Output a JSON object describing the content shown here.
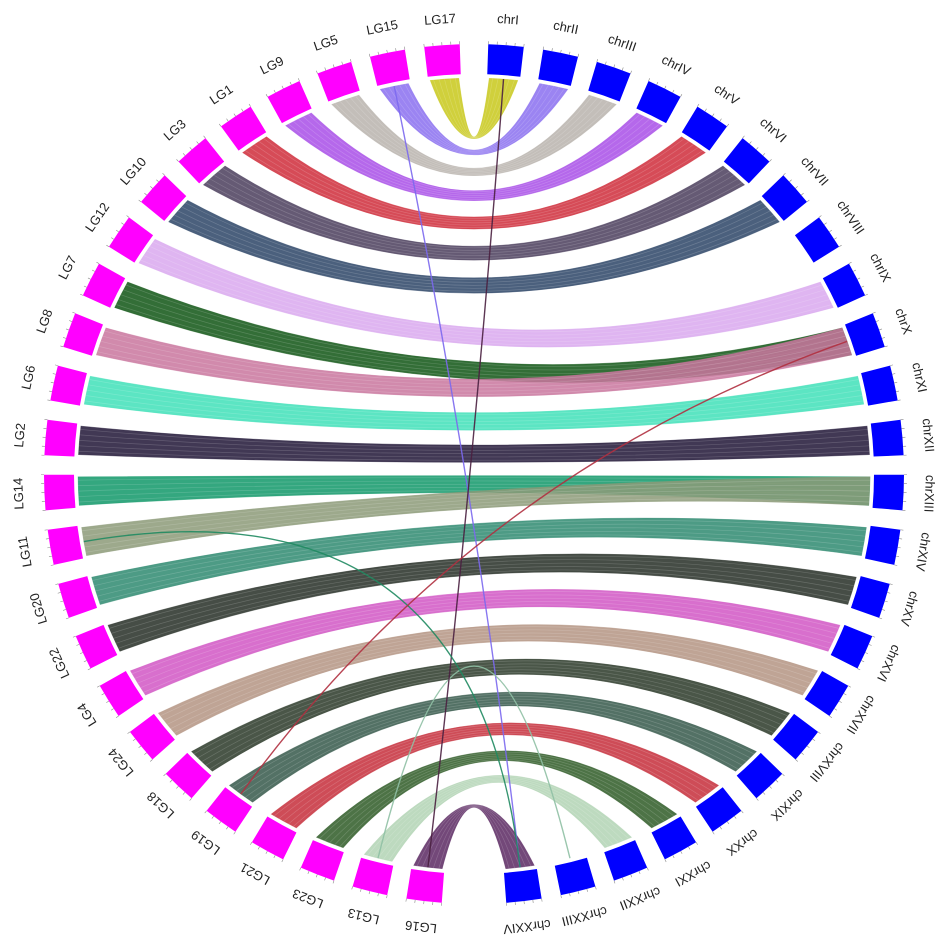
{
  "diagram": {
    "type": "circos-synteny",
    "colors": {
      "left_block": "#ff00ff",
      "right_block": "#0000ff",
      "label_text": "#222222",
      "background": "#ffffff"
    },
    "left_group": [
      {
        "label": "LG17"
      },
      {
        "label": "LG15"
      },
      {
        "label": "LG5"
      },
      {
        "label": "LG9"
      },
      {
        "label": "LG1"
      },
      {
        "label": "LG3"
      },
      {
        "label": "LG10"
      },
      {
        "label": "LG12"
      },
      {
        "label": "LG7"
      },
      {
        "label": "LG8"
      },
      {
        "label": "LG6"
      },
      {
        "label": "LG2"
      },
      {
        "label": "LG14"
      },
      {
        "label": "LG11"
      },
      {
        "label": "LG20"
      },
      {
        "label": "LG22"
      },
      {
        "label": "LG4"
      },
      {
        "label": "LG24"
      },
      {
        "label": "LG18"
      },
      {
        "label": "LG19"
      },
      {
        "label": "LG21"
      },
      {
        "label": "LG23"
      },
      {
        "label": "LG13"
      },
      {
        "label": "LG16"
      }
    ],
    "right_group": [
      {
        "label": "chrI"
      },
      {
        "label": "chrII"
      },
      {
        "label": "chrIII"
      },
      {
        "label": "chrIV"
      },
      {
        "label": "chrV"
      },
      {
        "label": "chrVI"
      },
      {
        "label": "chrVII"
      },
      {
        "label": "chrVIII"
      },
      {
        "label": "chrIX"
      },
      {
        "label": "chrX"
      },
      {
        "label": "chrXI"
      },
      {
        "label": "chrXII"
      },
      {
        "label": "chrXIII"
      },
      {
        "label": "chrXIV"
      },
      {
        "label": "chrXV"
      },
      {
        "label": "chrXVI"
      },
      {
        "label": "chrXVII"
      },
      {
        "label": "chrXVIII"
      },
      {
        "label": "chrXIX"
      },
      {
        "label": "chrXX"
      },
      {
        "label": "chrXXI"
      },
      {
        "label": "chrXXII"
      },
      {
        "label": "chrXXIII"
      },
      {
        "label": "chrXXIV"
      }
    ],
    "links": [
      {
        "from": "LG17",
        "to": "chrI",
        "color": "#c8c81a"
      },
      {
        "from": "LG15",
        "to": "chrII",
        "color": "#8a6ff0"
      },
      {
        "from": "LG5",
        "to": "chrIII",
        "color": "#b9b3ad"
      },
      {
        "from": "LG9",
        "to": "chrIV",
        "color": "#a84ee8"
      },
      {
        "from": "LG1",
        "to": "chrV",
        "color": "#cf2b3a"
      },
      {
        "from": "LG3",
        "to": "chrVI",
        "color": "#4a3d5c"
      },
      {
        "from": "LG10",
        "to": "chrVII",
        "color": "#2c4466"
      },
      {
        "from": "LG12",
        "to": "chrIX",
        "color": "#d9a8ef"
      },
      {
        "from": "LG7",
        "to": "chrX",
        "color": "#0f5514"
      },
      {
        "from": "LG8",
        "to": "chrX",
        "color": "#c9759e"
      },
      {
        "from": "LG6",
        "to": "chrXI",
        "color": "#3fe0b8"
      },
      {
        "from": "LG2",
        "to": "chrXII",
        "color": "#201536"
      },
      {
        "from": "LG14",
        "to": "chrXIII",
        "color": "#109868"
      },
      {
        "from": "LG11",
        "to": "chrXIII",
        "color": "#8c9a78"
      },
      {
        "from": "LG20",
        "to": "chrXIV",
        "color": "#2e8a70"
      },
      {
        "from": "LG22",
        "to": "chrXV",
        "color": "#262e26"
      },
      {
        "from": "LG4",
        "to": "chrXVI",
        "color": "#d156c4"
      },
      {
        "from": "LG24",
        "to": "chrXVII",
        "color": "#b49482"
      },
      {
        "from": "LG18",
        "to": "chrXVIII",
        "color": "#2a3828"
      },
      {
        "from": "LG19",
        "to": "chrXIX",
        "color": "#35584a"
      },
      {
        "from": "LG21",
        "to": "chrXX",
        "color": "#c62d3a"
      },
      {
        "from": "LG23",
        "to": "chrXXI",
        "color": "#2e5a26"
      },
      {
        "from": "LG13",
        "to": "chrXXII",
        "color": "#b2d3b4"
      },
      {
        "from": "LG16",
        "to": "chrXXIV",
        "color": "#5a2862"
      },
      {
        "from": "LG15",
        "to": "chrXXIV",
        "color": "#7b68ee"
      },
      {
        "from": "LG13",
        "to": "chrXXIII",
        "color": "#8fc0a4"
      },
      {
        "from": "LG16",
        "to": "chrI",
        "color": "#4a2040"
      },
      {
        "from": "LG11",
        "to": "chrXXIV",
        "color": "#1f8a60"
      },
      {
        "from": "LG19",
        "to": "chrX",
        "color": "#b03040"
      }
    ]
  }
}
